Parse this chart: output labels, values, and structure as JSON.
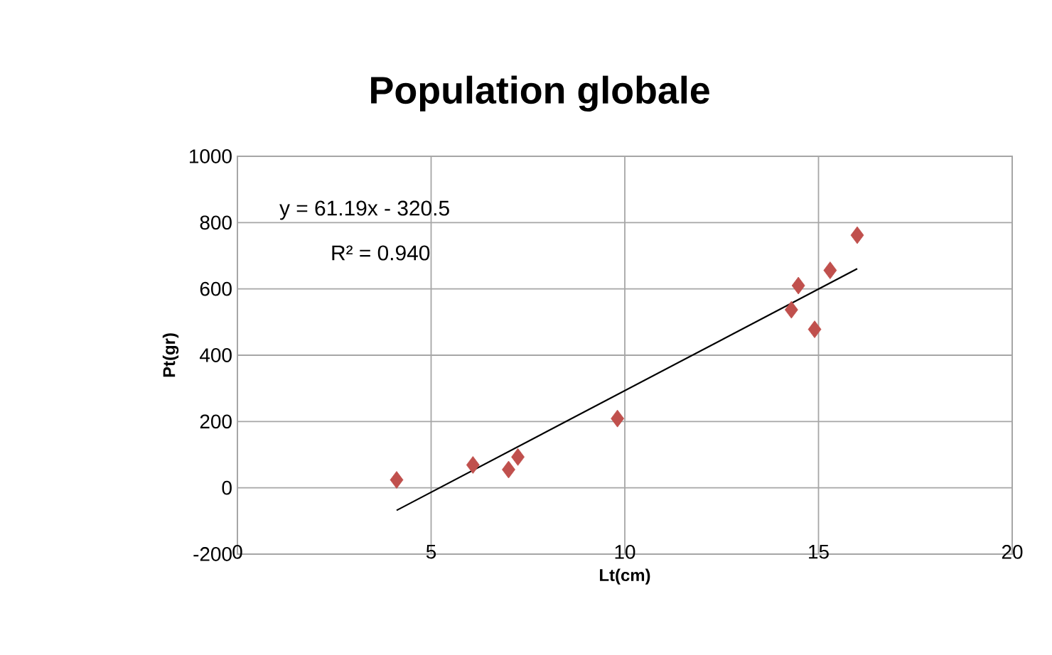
{
  "chart_data": {
    "type": "scatter",
    "title": "Population globale",
    "xlabel": "Lt(cm)",
    "ylabel": "Pt(gr)",
    "xlim": [
      0,
      20
    ],
    "xticks": [
      0,
      5,
      10,
      15,
      20
    ],
    "ylim": [
      -200,
      1000
    ],
    "yticks": [
      -200,
      0,
      200,
      400,
      600,
      800,
      1000
    ],
    "grid": true,
    "marker": "diamond",
    "series": [
      {
        "type": "scatter",
        "color": "#c0504d",
        "x": [
          4.11,
          6.08,
          7.0,
          7.24,
          9.81,
          14.3,
          14.48,
          14.9,
          15.3,
          16.0
        ],
        "values": [
          24,
          69,
          55,
          93,
          209,
          537,
          610,
          478,
          656,
          762
        ]
      },
      {
        "type": "line",
        "color": "#000000",
        "marker": "none",
        "x": [
          4.11,
          16.0
        ],
        "values": [
          -68,
          661
        ]
      }
    ],
    "annotations": [
      "y = 61.19x - 320.5",
      "R² = 0.940"
    ]
  }
}
